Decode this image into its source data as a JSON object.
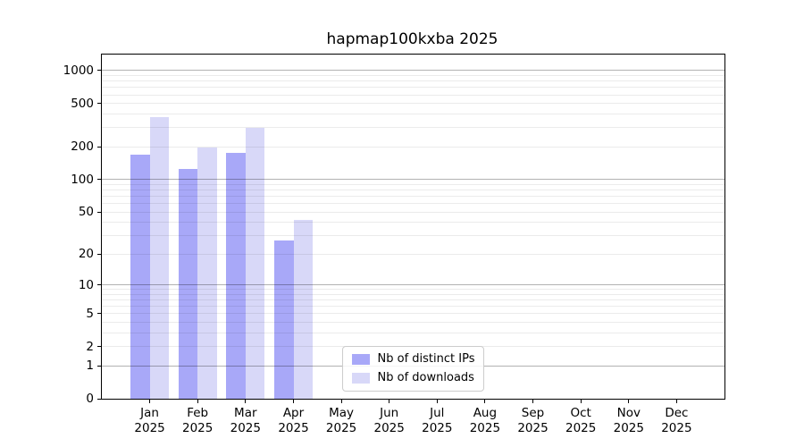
{
  "chart_data": {
    "type": "bar",
    "title": "hapmap100kxba 2025",
    "categories": [
      "Jan",
      "Feb",
      "Mar",
      "Apr",
      "May",
      "Jun",
      "Jul",
      "Aug",
      "Sep",
      "Oct",
      "Nov",
      "Dec"
    ],
    "x_year_label": "2025",
    "series": [
      {
        "name": "Nb of distinct IPs",
        "color": "#a8a8f8",
        "values": [
          170,
          124,
          175,
          27,
          null,
          null,
          null,
          null,
          null,
          null,
          null,
          null
        ]
      },
      {
        "name": "Nb of downloads",
        "color": "#d8d8f8",
        "values": [
          375,
          196,
          300,
          42,
          null,
          null,
          null,
          null,
          null,
          null,
          null,
          null
        ]
      }
    ],
    "yscale": "log10(value+1)",
    "ylim": [
      0,
      1400
    ],
    "yticks": [
      0,
      1,
      2,
      5,
      10,
      20,
      50,
      100,
      200,
      500,
      1000
    ],
    "major_gridlines": [
      1,
      10,
      100,
      1000
    ],
    "minor_gridlines": [
      2,
      3,
      4,
      5,
      6,
      7,
      8,
      9,
      20,
      30,
      40,
      50,
      60,
      70,
      80,
      90,
      200,
      300,
      400,
      500,
      600,
      700,
      800,
      900
    ],
    "grid": true,
    "legend_position": "lower center"
  }
}
